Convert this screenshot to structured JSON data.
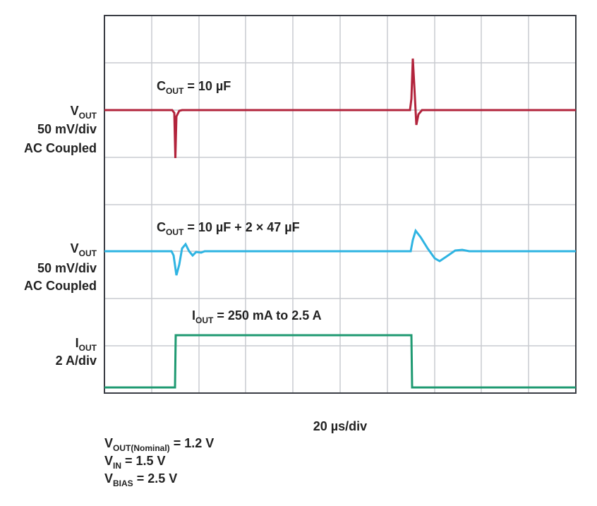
{
  "channels": [
    {
      "label": {
        "main": "V",
        "sub": "OUT"
      },
      "scale": "50 mV/div",
      "coupling": "AC Coupled"
    },
    {
      "label": {
        "main": "V",
        "sub": "OUT"
      },
      "scale": "50 mV/div",
      "coupling": "AC Coupled"
    },
    {
      "label": {
        "main": "I",
        "sub": "OUT"
      },
      "scale": "2 A/div"
    }
  ],
  "annotations": [
    {
      "main": "C",
      "sub": "OUT",
      "rest": "= 10 µF"
    },
    {
      "main": "C",
      "sub": "OUT",
      "rest": "= 10 µF + 2 × 47 µF"
    },
    {
      "main": "I",
      "sub": "OUT",
      "rest": "= 250 mA to 2.5 A"
    }
  ],
  "timebase": "20 µs/div",
  "conditions": [
    {
      "main": "V",
      "sub": "OUT(Nominal)",
      "rest": "= 1.2 V"
    },
    {
      "main": "V",
      "sub": "IN",
      "rest": "= 1.5 V"
    },
    {
      "main": "V",
      "sub": "BIAS",
      "rest": "= 2.5 V"
    }
  ]
}
